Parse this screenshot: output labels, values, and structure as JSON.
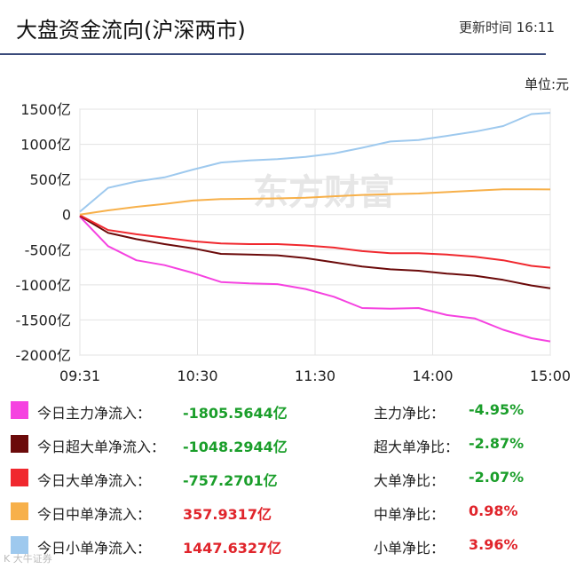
{
  "header": {
    "title": "大盘资金流向(沪深两市)",
    "update_label": "更新时间",
    "update_time": "16:11"
  },
  "unit_label": "单位:元",
  "watermark": "东方财富",
  "corner_mark": "K 大牛证券",
  "chart_data": {
    "type": "line",
    "x_ticks": [
      "09:31",
      "10:30",
      "11:30",
      "14:00",
      "15:00"
    ],
    "y_ticks": [
      "1500亿",
      "1000亿",
      "500亿",
      "0",
      "-500亿",
      "-1000亿",
      "-1500亿",
      "-2000亿"
    ],
    "ylim": [
      -2000,
      1500
    ],
    "grid": true,
    "x": [
      0,
      0.06,
      0.12,
      0.18,
      0.24,
      0.3,
      0.36,
      0.42,
      0.48,
      0.54,
      0.6,
      0.66,
      0.72,
      0.78,
      0.84,
      0.9,
      0.96,
      1.0
    ],
    "series": [
      {
        "name": "今日主力净流入",
        "color": "#f542e0",
        "values": [
          -30,
          -450,
          -650,
          -720,
          -830,
          -960,
          -980,
          -990,
          -1060,
          -1170,
          -1330,
          -1340,
          -1330,
          -1430,
          -1480,
          -1640,
          -1760,
          -1805
        ]
      },
      {
        "name": "今日超大单净流入",
        "color": "#6b0a0a",
        "values": [
          -20,
          -260,
          -350,
          -420,
          -480,
          -560,
          -570,
          -580,
          -620,
          -680,
          -740,
          -780,
          -800,
          -840,
          -870,
          -930,
          -1010,
          -1048
        ]
      },
      {
        "name": "今日大单净流入",
        "color": "#f0282e",
        "values": [
          -10,
          -220,
          -280,
          -330,
          -380,
          -410,
          -420,
          -420,
          -440,
          -470,
          -520,
          -550,
          -550,
          -570,
          -600,
          -650,
          -730,
          -757
        ]
      },
      {
        "name": "今日中单净流入",
        "color": "#f7b04a",
        "values": [
          0,
          60,
          110,
          150,
          200,
          220,
          225,
          230,
          240,
          260,
          280,
          290,
          300,
          320,
          340,
          360,
          360,
          358
        ]
      },
      {
        "name": "今日小单净流入",
        "color": "#9ec9ee",
        "values": [
          40,
          380,
          470,
          530,
          640,
          740,
          770,
          790,
          820,
          870,
          950,
          1040,
          1060,
          1120,
          1180,
          1260,
          1430,
          1448
        ]
      }
    ]
  },
  "legend": [
    {
      "label": "今日主力净流入：",
      "value": "-1805.5644亿",
      "ratio_label": "主力净比：",
      "ratio": "-4.95%",
      "color": "#f542e0",
      "sign": "neg"
    },
    {
      "label": "今日超大单净流入：",
      "value": "-1048.2944亿",
      "ratio_label": "超大单净比：",
      "ratio": "-2.87%",
      "color": "#6b0a0a",
      "sign": "neg"
    },
    {
      "label": "今日大单净流入：",
      "value": "-757.2701亿",
      "ratio_label": "大单净比：",
      "ratio": "-2.07%",
      "color": "#f0282e",
      "sign": "neg"
    },
    {
      "label": "今日中单净流入：",
      "value": "357.9317亿",
      "ratio_label": "中单净比：",
      "ratio": "0.98%",
      "color": "#f7b04a",
      "sign": "pos"
    },
    {
      "label": "今日小单净流入：",
      "value": "1447.6327亿",
      "ratio_label": "小单净比：",
      "ratio": "3.96%",
      "color": "#9ec9ee",
      "sign": "pos"
    }
  ]
}
